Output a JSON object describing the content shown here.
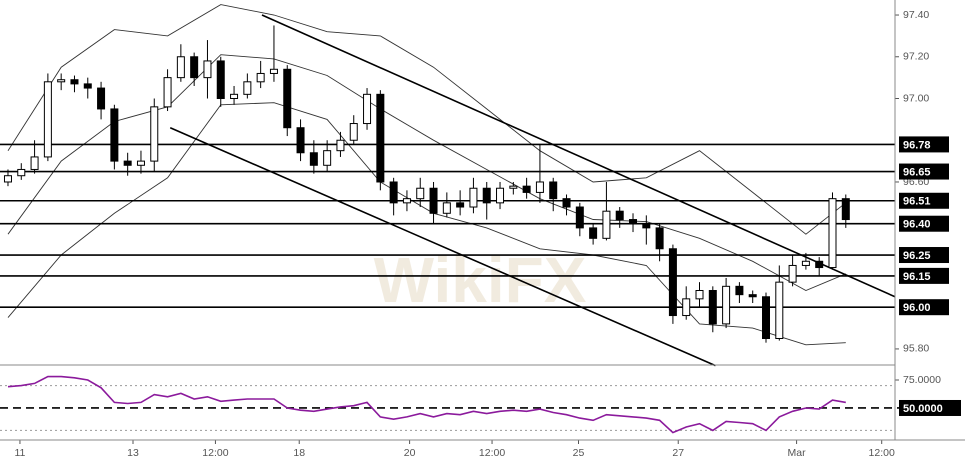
{
  "chart_data": [
    {
      "type": "candlestick",
      "watermark": "WikiFX",
      "open": [
        96.6,
        96.63,
        96.66,
        96.72,
        97.08,
        97.09,
        97.07,
        97.05,
        96.95,
        96.7,
        96.68,
        96.7,
        96.96,
        97.1,
        97.2,
        97.1,
        97.18,
        97.0,
        97.02,
        97.08,
        97.12,
        97.14,
        96.86,
        96.74,
        96.68,
        96.75,
        96.8,
        96.88,
        97.02,
        96.6,
        96.5,
        96.52,
        96.57,
        96.45,
        96.5,
        96.48,
        96.57,
        96.5,
        96.57,
        96.58,
        96.55,
        96.6,
        96.52,
        96.48,
        96.38,
        96.33,
        96.46,
        96.42,
        96.4,
        96.38,
        96.28,
        95.96,
        96.04,
        96.08,
        95.92,
        96.1,
        96.06,
        96.05,
        95.85,
        96.12,
        96.2,
        96.22,
        96.19,
        96.52
      ],
      "high": [
        96.66,
        96.69,
        96.8,
        97.12,
        97.12,
        97.11,
        97.1,
        97.08,
        96.97,
        96.74,
        96.75,
        97.0,
        97.14,
        97.26,
        97.22,
        97.28,
        97.2,
        97.06,
        97.12,
        97.18,
        97.35,
        97.16,
        96.9,
        96.8,
        96.8,
        96.84,
        96.92,
        97.05,
        97.04,
        96.62,
        96.56,
        96.62,
        96.6,
        96.55,
        96.56,
        96.62,
        96.6,
        96.6,
        96.6,
        96.62,
        96.78,
        96.62,
        96.54,
        96.5,
        96.4,
        96.6,
        96.48,
        96.45,
        96.44,
        96.4,
        96.3,
        96.1,
        96.12,
        96.1,
        96.14,
        96.12,
        96.08,
        96.07,
        96.2,
        96.25,
        96.26,
        96.24,
        96.55,
        96.54
      ],
      "low": [
        96.58,
        96.61,
        96.64,
        96.7,
        97.04,
        97.03,
        97.0,
        96.9,
        96.66,
        96.63,
        96.64,
        96.65,
        96.94,
        97.08,
        97.06,
        97.0,
        96.96,
        96.97,
        97.0,
        97.05,
        97.08,
        96.82,
        96.7,
        96.64,
        96.65,
        96.72,
        96.78,
        96.85,
        96.56,
        96.44,
        96.46,
        96.48,
        96.4,
        96.43,
        96.44,
        96.45,
        96.42,
        96.47,
        96.54,
        96.52,
        96.5,
        96.46,
        96.44,
        96.34,
        96.3,
        96.32,
        96.38,
        96.36,
        96.3,
        96.22,
        95.92,
        95.94,
        96.0,
        95.88,
        95.9,
        96.02,
        96.02,
        95.83,
        95.84,
        96.1,
        96.18,
        96.15,
        96.18,
        96.38
      ],
      "close": [
        96.63,
        96.66,
        96.72,
        97.08,
        97.09,
        97.07,
        97.05,
        96.95,
        96.7,
        96.68,
        96.7,
        96.96,
        97.1,
        97.2,
        97.1,
        97.18,
        97.0,
        97.02,
        97.08,
        97.12,
        97.14,
        96.86,
        96.74,
        96.68,
        96.75,
        96.8,
        96.88,
        97.02,
        96.6,
        96.5,
        96.52,
        96.57,
        96.45,
        96.5,
        96.48,
        96.57,
        96.5,
        96.57,
        96.58,
        96.55,
        96.6,
        96.52,
        96.48,
        96.38,
        96.33,
        96.46,
        96.42,
        96.4,
        96.38,
        96.28,
        95.96,
        96.04,
        96.08,
        95.92,
        96.1,
        96.06,
        96.05,
        95.85,
        96.12,
        96.2,
        96.22,
        96.19,
        96.52,
        96.42
      ],
      "bands": {
        "x": [
          0,
          4,
          8,
          12,
          16,
          20,
          24,
          28,
          32,
          36,
          40,
          44,
          48,
          52,
          56,
          60,
          63
        ],
        "upper": [
          96.75,
          97.15,
          97.33,
          97.3,
          97.45,
          97.4,
          97.32,
          97.3,
          97.15,
          96.95,
          96.75,
          96.6,
          96.62,
          96.75,
          96.55,
          96.35,
          96.5
        ],
        "middle": [
          96.35,
          96.7,
          96.89,
          96.96,
          97.21,
          97.19,
          97.11,
          96.95,
          96.8,
          96.66,
          96.52,
          96.42,
          96.41,
          96.33,
          96.22,
          96.08,
          96.16
        ],
        "lower": [
          95.95,
          96.25,
          96.45,
          96.62,
          96.97,
          96.98,
          96.9,
          96.6,
          96.45,
          96.38,
          96.28,
          96.25,
          96.2,
          95.92,
          95.9,
          95.82,
          95.83
        ]
      },
      "trendlines": [
        {
          "x": [
            19.1,
            66.7
          ],
          "y": [
            97.4,
            96.05
          ]
        },
        {
          "x": [
            12.2,
            53.2
          ],
          "y": [
            96.86,
            95.72
          ]
        }
      ],
      "levels": [
        96.78,
        96.65,
        96.51,
        {
          "value": 96.4,
          "label": "96.40"
        },
        96.25,
        96.15,
        {
          "value": 96,
          "label": "96.00"
        }
      ],
      "xlim": [
        -0.6,
        66.7
      ],
      "ylim": [
        95.723,
        97.472
      ],
      "yticks": [
        {
          "value": 95.8,
          "label": "95.80"
        },
        {
          "value": 96.6,
          "label": "96.60"
        },
        {
          "value": 97,
          "label": "97.00"
        },
        {
          "value": 97.2,
          "label": "97.20"
        },
        {
          "value": 97.4,
          "label": "97.40"
        }
      ]
    },
    {
      "type": "line",
      "color": "#8b1a9c",
      "values": [
        69,
        70,
        72,
        78,
        78,
        77,
        75,
        68,
        55,
        54,
        55,
        62,
        60,
        63,
        58,
        60,
        56,
        57,
        58,
        58,
        58,
        50,
        48,
        47,
        49,
        51,
        52,
        55,
        42,
        40,
        42,
        45,
        42,
        45,
        44,
        47,
        45,
        47,
        48,
        47,
        49,
        46,
        44,
        41,
        39,
        44,
        43,
        42,
        41,
        39,
        28,
        33,
        36,
        30,
        38,
        37,
        36,
        30,
        42,
        47,
        50,
        49,
        57,
        55
      ],
      "hlines": [
        70,
        30
      ],
      "xlim": [
        -0.6,
        66.7
      ],
      "ylim": [
        21.4,
        88.4
      ],
      "yticks": [
        {
          "value": 50,
          "label": "50.0000"
        },
        {
          "value": 75,
          "label": "75.0000"
        }
      ],
      "xticks": [
        {
          "value": 0.9,
          "label": "11"
        },
        {
          "value": 9.4,
          "label": "13"
        },
        {
          "value": 15.6,
          "label": "12:00"
        },
        {
          "value": 21.9,
          "label": "18"
        },
        {
          "value": 30.2,
          "label": "20"
        },
        {
          "value": 36.4,
          "label": "12:00"
        },
        {
          "value": 42.9,
          "label": "25"
        },
        {
          "value": 50.4,
          "label": "27"
        },
        {
          "value": 59.3,
          "label": "Mar"
        },
        {
          "value": 65.7,
          "label": "12:00"
        }
      ]
    }
  ]
}
